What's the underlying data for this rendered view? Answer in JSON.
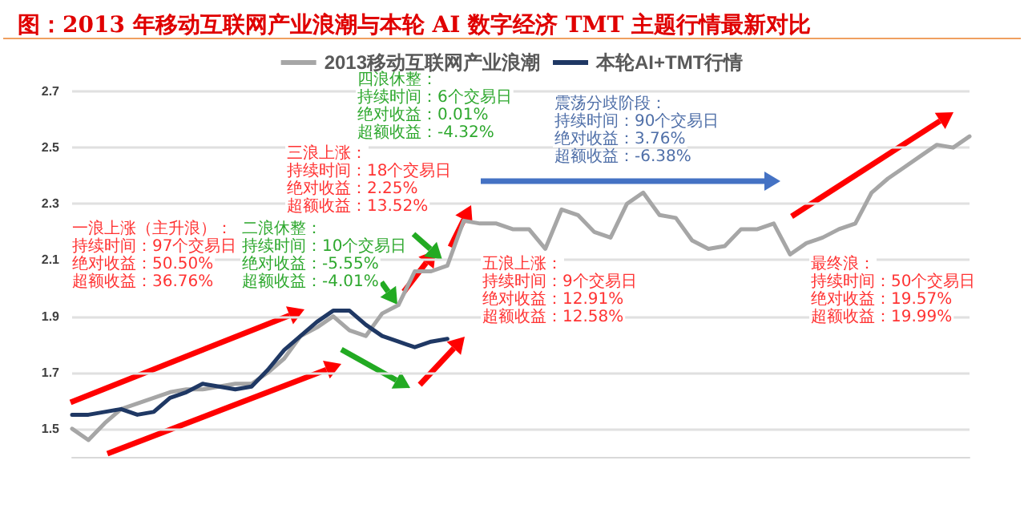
{
  "chart_data": {
    "type": "line",
    "title": "图：2013 年移动互联网产业浪潮与本轮 AI 数字经济 TMT 主题行情最新对比",
    "categories": [
      null,
      null,
      null,
      null,
      null,
      null,
      null,
      null,
      null,
      null,
      null,
      null,
      null,
      null,
      null,
      null,
      null,
      null,
      null,
      null,
      null,
      null,
      null,
      null,
      null,
      null,
      null,
      null,
      null,
      null,
      null,
      null,
      null,
      null,
      null,
      null,
      null,
      null,
      null,
      null,
      null,
      null,
      null,
      null,
      null,
      null,
      null,
      null,
      null,
      null,
      null,
      null,
      null,
      null,
      null,
      null
    ],
    "series": [
      {
        "name": "2013移动互联网产业浪潮",
        "color": "#a6a6a6",
        "values": [
          1.5,
          1.46,
          1.52,
          1.57,
          1.59,
          1.61,
          1.63,
          1.64,
          1.64,
          1.65,
          1.66,
          1.66,
          1.7,
          1.75,
          1.83,
          1.86,
          1.9,
          1.85,
          1.83,
          1.91,
          1.94,
          2.06,
          2.06,
          2.08,
          2.24,
          2.23,
          2.23,
          2.21,
          2.21,
          2.14,
          2.28,
          2.26,
          2.2,
          2.18,
          2.3,
          2.34,
          2.26,
          2.25,
          2.17,
          2.14,
          2.15,
          2.21,
          2.21,
          2.23,
          2.12,
          2.16,
          2.18,
          2.21,
          2.23,
          2.34,
          2.39,
          2.43,
          2.47,
          2.51,
          2.5,
          2.54
        ]
      },
      {
        "name": "本轮AI+TMT行情",
        "color": "#1f3864",
        "values": [
          1.55,
          1.55,
          1.56,
          1.57,
          1.55,
          1.56,
          1.61,
          1.63,
          1.66,
          1.65,
          1.64,
          1.65,
          1.71,
          1.78,
          1.83,
          1.88,
          1.92,
          1.92,
          1.87,
          1.83,
          1.81,
          1.79,
          1.81,
          1.82,
          null,
          null,
          null,
          null,
          null,
          null,
          null,
          null,
          null,
          null,
          null,
          null,
          null,
          null,
          null,
          null,
          null,
          null,
          null,
          null,
          null,
          null,
          null,
          null,
          null,
          null,
          null,
          null,
          null,
          null,
          null,
          null
        ]
      }
    ],
    "ylim": [
      1.4,
      2.7
    ],
    "yticks": [
      1.5,
      1.7,
      1.9,
      2.1,
      2.3,
      2.5,
      2.7
    ],
    "annotations": [
      "一浪上涨（主升浪）：",
      "持续时间：97个交易日",
      "绝对收益：50.50%",
      "超额收益：36.76%",
      "二浪休整：",
      "持续时间：10个交易日",
      "绝对收益：-5.55%",
      "超额收益：-4.01%",
      "三浪上涨：",
      "持续时间：18个交易日",
      "绝对收益：2.25%",
      "超额收益：13.52%",
      "四浪休整：",
      "持续时间：6个交易日",
      "绝对收益：0.01%",
      "超额收益：-4.32%",
      "五浪上涨：",
      "持续时间：9个交易日",
      "绝对收益：12.91%",
      "超额收益：12.58%",
      "震荡分歧阶段：",
      "持续时间：90个交易日",
      "绝对收益：3.76%",
      "超额收益：-6.38%",
      "最终浪：",
      "持续时间：50个交易日",
      "绝对收益：19.57%",
      "超额收益：19.99%"
    ],
    "grid": "y",
    "legend": "top",
    "marker": "none",
    "line_style": "solid"
  }
}
